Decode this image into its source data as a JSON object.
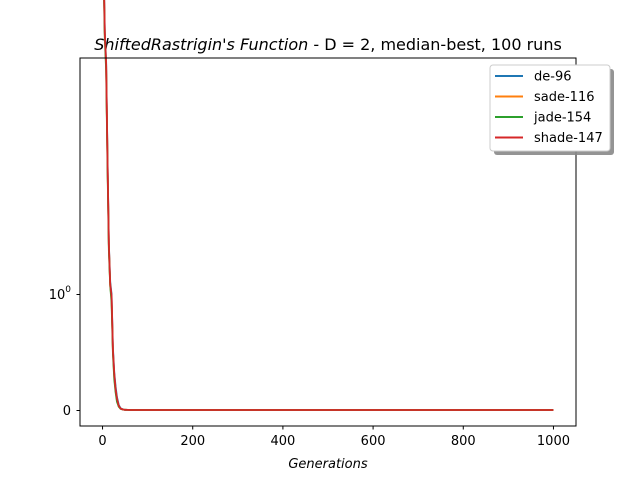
{
  "chart_data": {
    "type": "line",
    "title": {
      "italic_part": "ShiftedRastrigin's Function",
      "rest": " - D = 2, median-best, 100 runs"
    },
    "xlabel": "Generations",
    "ylabel": "",
    "x_ticks": [
      "0",
      "200",
      "400",
      "600",
      "800",
      "1000"
    ],
    "y_ticks": [
      "0",
      "10^0"
    ],
    "y_tick_parts": {
      "base": "10",
      "exp": "0"
    },
    "y_scale": "symlog",
    "xlim": [
      -50,
      1050
    ],
    "grid": false,
    "legend_position": "top-right",
    "series": [
      {
        "name": "de-96",
        "color": "#1f77b4",
        "x": [
          0,
          1,
          3,
          5,
          8,
          11,
          14,
          17,
          20,
          23,
          26,
          29,
          32,
          36,
          40,
          45,
          50,
          60,
          80,
          150,
          1000
        ],
        "y": [
          27.5,
          20,
          12,
          8.6,
          7.0,
          3.5,
          1.7,
          1.15,
          1.0,
          0.45,
          0.25,
          0.15,
          0.08,
          0.03,
          0.01,
          0.004,
          0.001,
          0.0003,
          0.0001,
          0,
          0
        ]
      },
      {
        "name": "sade-116",
        "color": "#ff7f0e",
        "x": [
          0,
          1,
          3,
          5,
          8,
          11,
          14,
          17,
          20,
          23,
          26,
          29,
          32,
          36,
          40,
          45,
          50,
          60,
          80,
          150,
          1000
        ],
        "y": [
          25,
          19,
          11.5,
          8.4,
          6.8,
          3.4,
          1.65,
          1.1,
          0.95,
          0.42,
          0.22,
          0.12,
          0.06,
          0.02,
          0.008,
          0.003,
          0.001,
          0.0003,
          0.0001,
          0,
          0
        ]
      },
      {
        "name": "jade-154",
        "color": "#2ca02c",
        "x": [
          0,
          1,
          3,
          5,
          8,
          11,
          14,
          17,
          20,
          23,
          26,
          29,
          32,
          36,
          40,
          45,
          50,
          60,
          80,
          150,
          1000
        ],
        "y": [
          24,
          18.5,
          11.2,
          8.2,
          6.6,
          3.3,
          1.6,
          1.1,
          0.9,
          0.4,
          0.2,
          0.11,
          0.05,
          0.02,
          0.007,
          0.003,
          0.001,
          0.0003,
          0.0001,
          0,
          0
        ]
      },
      {
        "name": "shade-147",
        "color": "#d62728",
        "x": [
          0,
          1,
          3,
          5,
          8,
          11,
          14,
          17,
          20,
          23,
          26,
          29,
          32,
          36,
          40,
          45,
          50,
          60,
          80,
          150,
          1000
        ],
        "y": [
          25.5,
          19.5,
          11.8,
          8.5,
          6.9,
          3.45,
          1.68,
          1.12,
          0.98,
          0.43,
          0.24,
          0.13,
          0.07,
          0.025,
          0.009,
          0.003,
          0.001,
          0.0003,
          0.0001,
          0,
          0
        ]
      }
    ]
  }
}
